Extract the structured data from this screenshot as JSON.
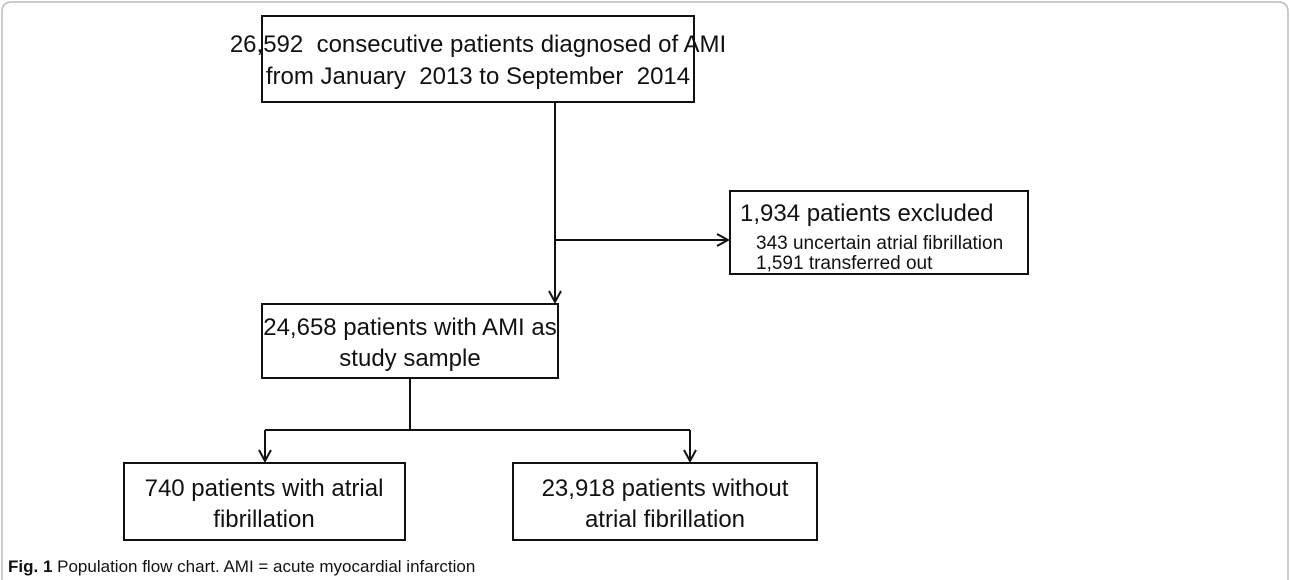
{
  "nodes": [
    {
      "lines": [
        "26,592  consecutive patients diagnosed of AMI",
        "from January  2013 to September  2014"
      ]
    },
    {
      "title": "1,934 patients excluded",
      "lines": [
        "343 uncertain atrial fibrillation",
        "1,591 transferred out"
      ]
    },
    {
      "lines": [
        "24,658 patients with AMI as",
        "study sample"
      ]
    },
    {
      "lines": [
        "740 patients with atrial",
        "fibrillation"
      ]
    },
    {
      "lines": [
        "23,918 patients without",
        "atrial fibrillation"
      ]
    }
  ],
  "caption": {
    "label": "Fig. 1",
    "text": "Population flow chart. AMI = acute myocardial infarction"
  }
}
